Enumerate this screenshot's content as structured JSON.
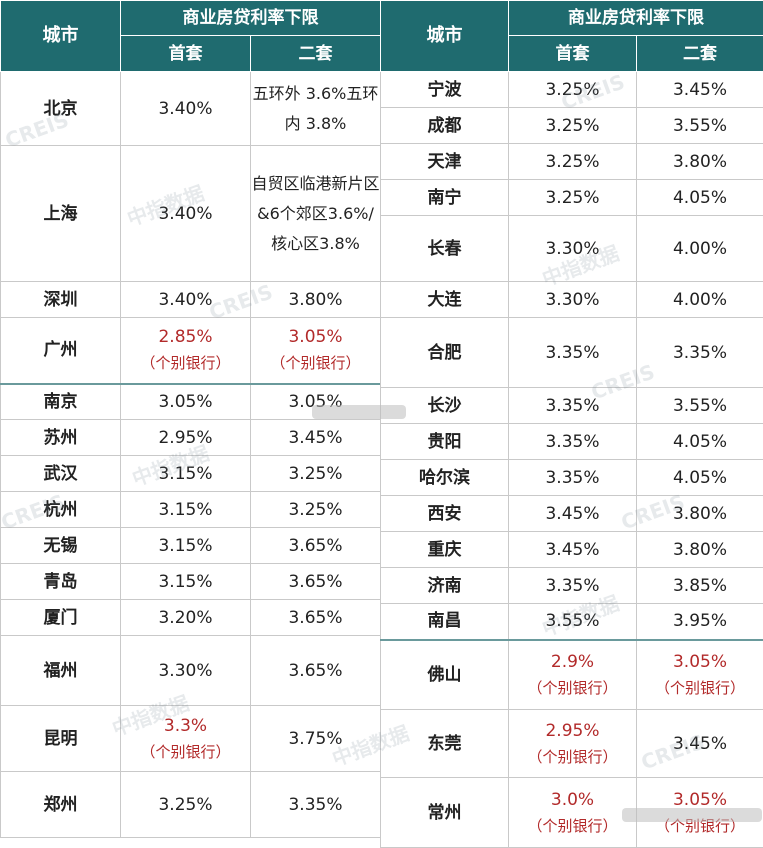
{
  "header": {
    "city": "城市",
    "group": "商业房贷利率下限",
    "first": "首套",
    "second": "二套"
  },
  "left": [
    {
      "city": "北京",
      "first": "3.40%",
      "second": "五环外 3.6%五环内 3.8%"
    },
    {
      "city": "上海",
      "first": "3.40%",
      "second": "自贸区临港新片区&6个郊区3.6%/核心区3.8%"
    },
    {
      "city": "深圳",
      "first": "3.40%",
      "second": "3.80%"
    },
    {
      "city": "广州",
      "first": "2.85%",
      "first_note": "（个别银行）",
      "second": "3.05%",
      "second_note": "（个别银行）"
    },
    {
      "city": "南京",
      "first": "3.05%",
      "second": "3.05%"
    },
    {
      "city": "苏州",
      "first": "2.95%",
      "second": "3.45%"
    },
    {
      "city": "武汉",
      "first": "3.15%",
      "second": "3.25%"
    },
    {
      "city": "杭州",
      "first": "3.15%",
      "second": "3.25%"
    },
    {
      "city": "无锡",
      "first": "3.15%",
      "second": "3.65%"
    },
    {
      "city": "青岛",
      "first": "3.15%",
      "second": "3.65%"
    },
    {
      "city": "厦门",
      "first": "3.20%",
      "second": "3.65%"
    },
    {
      "city": "福州",
      "first": "3.30%",
      "second": "3.65%"
    },
    {
      "city": "昆明",
      "first": "3.3%",
      "first_note": "（个别银行）",
      "second": "3.75%"
    },
    {
      "city": "郑州",
      "first": "3.25%",
      "second": "3.35%"
    }
  ],
  "right": [
    {
      "city": "宁波",
      "first": "3.25%",
      "second": "3.45%"
    },
    {
      "city": "成都",
      "first": "3.25%",
      "second": "3.55%"
    },
    {
      "city": "天津",
      "first": "3.25%",
      "second": "3.80%"
    },
    {
      "city": "南宁",
      "first": "3.25%",
      "second": "4.05%"
    },
    {
      "city": "长春",
      "first": "3.30%",
      "second": "4.00%"
    },
    {
      "city": "大连",
      "first": "3.30%",
      "second": "4.00%"
    },
    {
      "city": "合肥",
      "first": "3.35%",
      "second": "3.35%"
    },
    {
      "city": "长沙",
      "first": "3.35%",
      "second": "3.55%"
    },
    {
      "city": "贵阳",
      "first": "3.35%",
      "second": "4.05%"
    },
    {
      "city": "哈尔滨",
      "first": "3.35%",
      "second": "4.05%"
    },
    {
      "city": "西安",
      "first": "3.45%",
      "second": "3.80%"
    },
    {
      "city": "重庆",
      "first": "3.45%",
      "second": "3.80%"
    },
    {
      "city": "济南",
      "first": "3.35%",
      "second": "3.85%"
    },
    {
      "city": "南昌",
      "first": "3.55%",
      "second": "3.95%"
    },
    {
      "city": "佛山",
      "first": "2.9%",
      "first_note": "（个别银行）",
      "second": "3.05%",
      "second_note": "（个别银行）"
    },
    {
      "city": "东莞",
      "first": "2.95%",
      "first_note": "（个别银行）",
      "second": "3.45%"
    },
    {
      "city": "常州",
      "first": "3.0%",
      "first_note": "（个别银行）",
      "second": "3.05%",
      "second_note": "（个别银行）"
    }
  ],
  "watermark": {
    "cn": "中指数据",
    "en": "CREIS"
  },
  "colors": {
    "header_bg": "#1f6b6f",
    "highlight_text": "#b22a2a"
  }
}
